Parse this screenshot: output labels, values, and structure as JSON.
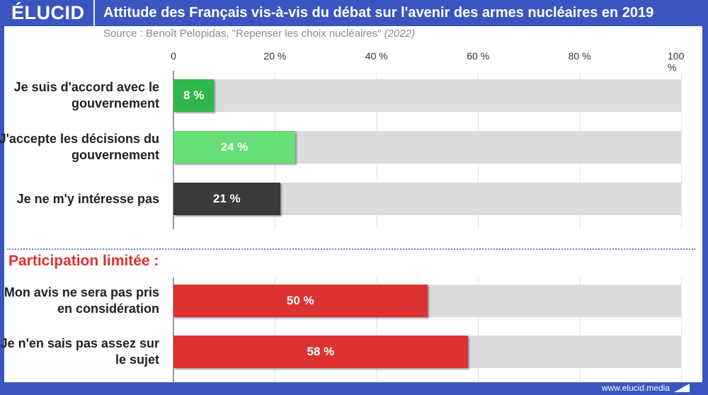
{
  "header": {
    "logo": "ÉLUCID",
    "title": "Attitude des Français vis-à-vis du débat sur l'avenir des armes nucléaires en 2019"
  },
  "source": {
    "text": "Source : Benoît Pelopidas, \"Repenser les choix nucléaires\" ",
    "year": "(2022)"
  },
  "footer": {
    "url": "www.elucid.media"
  },
  "chart_data": {
    "type": "bar",
    "orientation": "horizontal",
    "xlim": [
      0,
      100
    ],
    "ticks": [
      "0",
      "20 %",
      "40 %",
      "60 %",
      "80 %",
      "100 %"
    ],
    "section_label": "Participation limitée :",
    "categories": [
      "Je suis d'accord avec le gouvernement",
      "J'accepte les décisions du gouvernement",
      "Je ne m'y intéresse pas",
      "Mon avis ne sera pas pris en considération",
      "Je n'en sais pas assez sur le sujet"
    ],
    "values": [
      8,
      24,
      21,
      50,
      58
    ],
    "value_labels": [
      "8 %",
      "24 %",
      "21 %",
      "50 %",
      "58 %"
    ],
    "colors": [
      "#2eb84b",
      "#66dd77",
      "#3a3a3a",
      "#dc3232",
      "#dc3232"
    ],
    "track_color": "#dcdcdc"
  }
}
